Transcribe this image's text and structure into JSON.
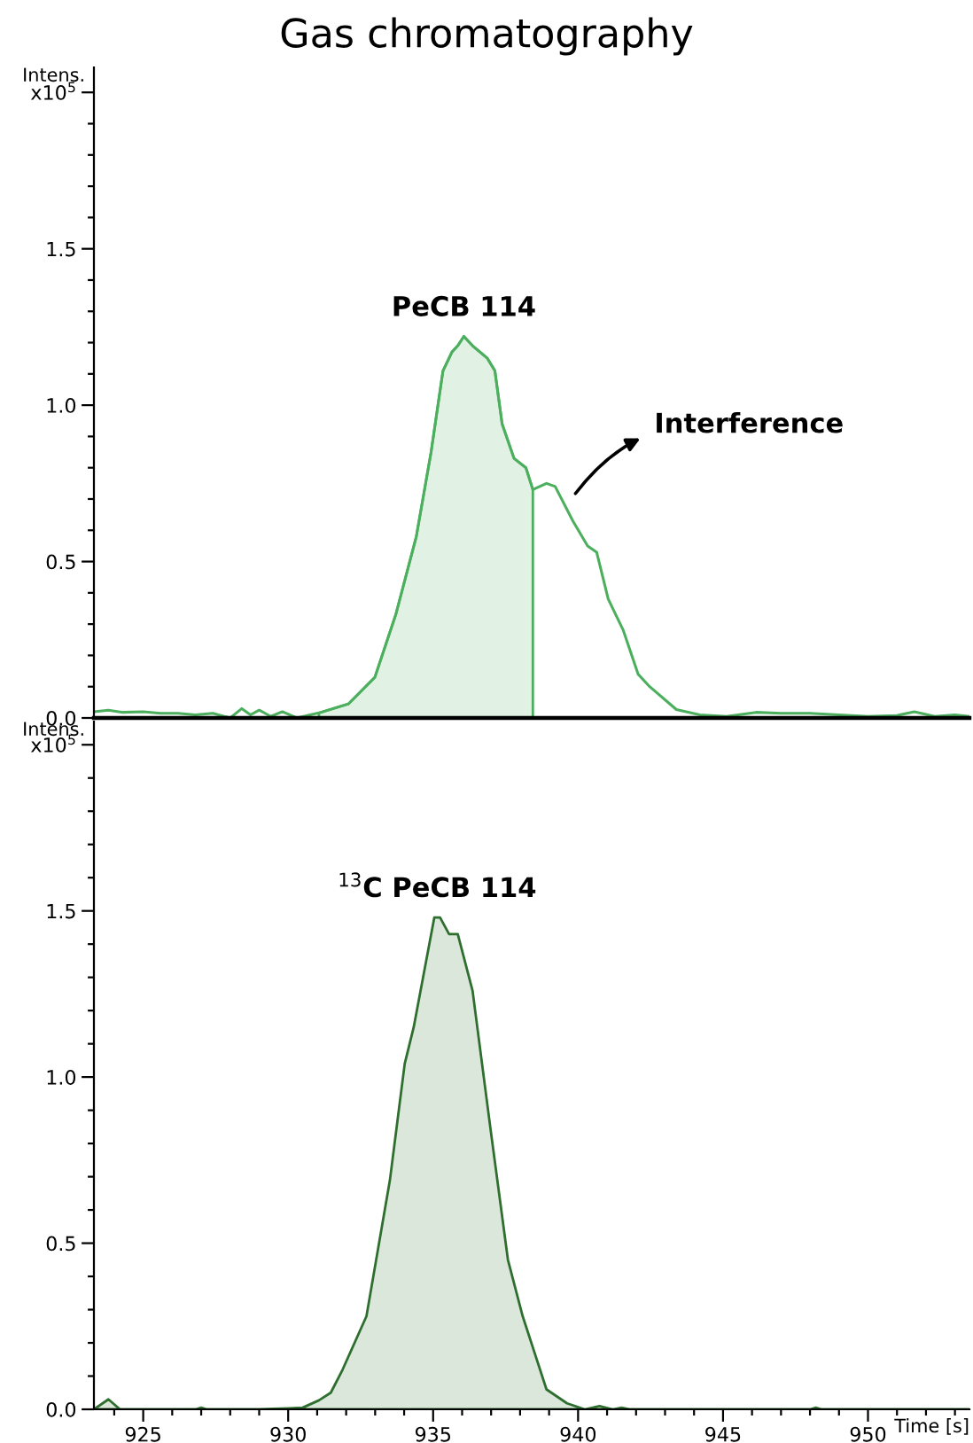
{
  "chart_data": [
    {
      "type": "line",
      "title": "Gas chromatography",
      "ylabel": "Intens.",
      "xlim": [
        923.3,
        953.5
      ],
      "ylim": [
        0,
        2.08
      ],
      "yticks": [
        {
          "value": 0,
          "label": "0.0"
        },
        {
          "value": 0.1,
          "label": null
        },
        {
          "value": 0.2,
          "label": null
        },
        {
          "value": 0.3,
          "label": null
        },
        {
          "value": 0.4,
          "label": null
        },
        {
          "value": 0.5,
          "label": "0.5"
        },
        {
          "value": 0.6,
          "label": null
        },
        {
          "value": 0.7,
          "label": null
        },
        {
          "value": 0.8,
          "label": null
        },
        {
          "value": 0.9,
          "label": null
        },
        {
          "value": 1,
          "label": "1.0"
        },
        {
          "value": 1.1,
          "label": null
        },
        {
          "value": 1.2,
          "label": null
        },
        {
          "value": 1.3,
          "label": null
        },
        {
          "value": 1.4,
          "label": null
        },
        {
          "value": 1.5,
          "label": "1.5"
        },
        {
          "value": 1.6,
          "label": null
        },
        {
          "value": 1.7,
          "label": null
        },
        {
          "value": 1.8,
          "label": null
        },
        {
          "value": 1.9,
          "label": null
        },
        {
          "value": 2.0,
          "label": "x10$^{5}$"
        }
      ],
      "tick_labels": "y",
      "grid": false,
      "legend": false,
      "marker": "none",
      "line_style": "solid",
      "annotations": [
        {
          "text": "PeCB 114",
          "x": 936.06,
          "y": 1.22
        },
        "Interference"
      ],
      "series": [
        {
          "type": "area",
          "color": "#4caf5e",
          "x": [
            931.06,
            932.08,
            932.99,
            933.71,
            934.42,
            934.93,
            935.34,
            935.65,
            935.85,
            936.06,
            936.36,
            936.87,
            937.13,
            937.38,
            937.79,
            938.2,
            938.44
          ],
          "values": [
            0.016,
            0.045,
            0.13,
            0.33,
            0.58,
            0.85,
            1.11,
            1.17,
            1.19,
            1.22,
            1.19,
            1.15,
            1.11,
            0.94,
            0.83,
            0.8,
            0.73
          ]
        },
        {
          "color": "#4caf5e",
          "x": [
            923.3,
            923.8,
            924.3,
            925.0,
            925.6,
            926.2,
            926.8,
            927.4,
            928.0,
            928.4,
            928.7,
            929.0,
            929.4,
            929.8,
            930.3,
            931.06,
            932.08,
            932.99,
            933.71,
            934.42,
            934.93,
            935.34,
            935.65,
            935.85,
            936.06,
            936.36,
            936.87,
            937.13,
            937.38,
            937.79,
            938.2,
            938.44,
            938.91,
            939.21,
            939.82,
            940.33,
            940.64,
            941.04,
            941.56,
            942.07,
            942.47,
            943.39,
            944.2,
            945.12,
            946.14,
            947.0,
            948.0,
            949.0,
            950.0,
            951.0,
            951.6,
            952.3,
            953.0,
            953.5
          ],
          "values": [
            0.02,
            0.025,
            0.018,
            0.02,
            0.015,
            0.015,
            0.01,
            0.015,
            0.0,
            0.03,
            0.01,
            0.025,
            0.005,
            0.02,
            0.0,
            0.016,
            0.045,
            0.13,
            0.33,
            0.58,
            0.85,
            1.11,
            1.17,
            1.19,
            1.22,
            1.19,
            1.15,
            1.11,
            0.94,
            0.83,
            0.8,
            0.73,
            0.75,
            0.74,
            0.63,
            0.55,
            0.53,
            0.38,
            0.28,
            0.14,
            0.1,
            0.027,
            0.01,
            0.005,
            0.018,
            0.015,
            0.015,
            0.01,
            0.005,
            0.008,
            0.02,
            0.005,
            0.01,
            0.005
          ]
        }
      ]
    },
    {
      "type": "area",
      "ylabel": "Intens.",
      "xlabel": "Time [s]",
      "xlim": [
        923.3,
        953.5
      ],
      "ylim": [
        0,
        2.07
      ],
      "xticks": [
        {
          "value": 924,
          "label": null
        },
        925,
        {
          "value": 926,
          "label": null
        },
        {
          "value": 927,
          "label": null
        },
        {
          "value": 928,
          "label": null
        },
        {
          "value": 929,
          "label": null
        },
        930,
        {
          "value": 931,
          "label": null
        },
        {
          "value": 932,
          "label": null
        },
        {
          "value": 933,
          "label": null
        },
        {
          "value": 934,
          "label": null
        },
        935,
        {
          "value": 936,
          "label": null
        },
        {
          "value": 937,
          "label": null
        },
        {
          "value": 938,
          "label": null
        },
        {
          "value": 939,
          "label": null
        },
        940,
        {
          "value": 941,
          "label": null
        },
        {
          "value": 942,
          "label": null
        },
        {
          "value": 943,
          "label": null
        },
        {
          "value": 944,
          "label": null
        },
        945,
        {
          "value": 946,
          "label": null
        },
        {
          "value": 947,
          "label": null
        },
        {
          "value": 948,
          "label": null
        },
        {
          "value": 949,
          "label": null
        },
        950,
        {
          "value": 951,
          "label": null
        },
        {
          "value": 952,
          "label": null
        },
        {
          "value": 953,
          "label": null
        }
      ],
      "yticks": [
        {
          "value": 0,
          "label": "0.0"
        },
        {
          "value": 0.1,
          "label": null
        },
        {
          "value": 0.2,
          "label": null
        },
        {
          "value": 0.3,
          "label": null
        },
        {
          "value": 0.4,
          "label": null
        },
        {
          "value": 0.5,
          "label": "0.5"
        },
        {
          "value": 0.6,
          "label": null
        },
        {
          "value": 0.7,
          "label": null
        },
        {
          "value": 0.8,
          "label": null
        },
        {
          "value": 0.9,
          "label": null
        },
        {
          "value": 1,
          "label": "1.0"
        },
        {
          "value": 1.1,
          "label": null
        },
        {
          "value": 1.2,
          "label": null
        },
        {
          "value": 1.3,
          "label": null
        },
        {
          "value": 1.4,
          "label": null
        },
        {
          "value": 1.5,
          "label": "1.5"
        },
        {
          "value": 1.6,
          "label": null
        },
        {
          "value": 1.7,
          "label": null
        },
        {
          "value": 1.8,
          "label": null
        },
        {
          "value": 1.9,
          "label": null
        },
        {
          "value": 2.0,
          "label": "x10$^{5}$"
        }
      ],
      "grid": false,
      "legend": false,
      "marker": "none",
      "line_style": "solid",
      "annotations": [
        {
          "text": "$^{13}$C PeCB 114",
          "x": 935.14,
          "y": 1.48
        }
      ],
      "series": [
        {
          "color": "#2e6e2e",
          "x": [
            923.3,
            923.8,
            924.2,
            925.0,
            926.8,
            927.0,
            927.2,
            929.0,
            930.0,
            930.5,
            931.06,
            931.47,
            931.88,
            932.7,
            933.51,
            934.02,
            934.33,
            935.04,
            935.24,
            935.55,
            935.85,
            936.36,
            936.97,
            937.58,
            938.09,
            938.91,
            939.62,
            940.23,
            940.74,
            941.2,
            941.5,
            941.8,
            948.0,
            948.2,
            948.4,
            953.5
          ],
          "values": [
            0.0,
            0.03,
            0.0,
            0.0,
            0.0,
            0.005,
            0.0,
            0.0,
            0.003,
            0.005,
            0.027,
            0.05,
            0.12,
            0.28,
            0.69,
            1.04,
            1.15,
            1.48,
            1.48,
            1.43,
            1.43,
            1.26,
            0.85,
            0.45,
            0.28,
            0.06,
            0.018,
            0.0,
            0.01,
            0.0,
            0.005,
            0.0,
            0.0,
            0.005,
            0.0,
            0.0
          ]
        }
      ]
    }
  ]
}
